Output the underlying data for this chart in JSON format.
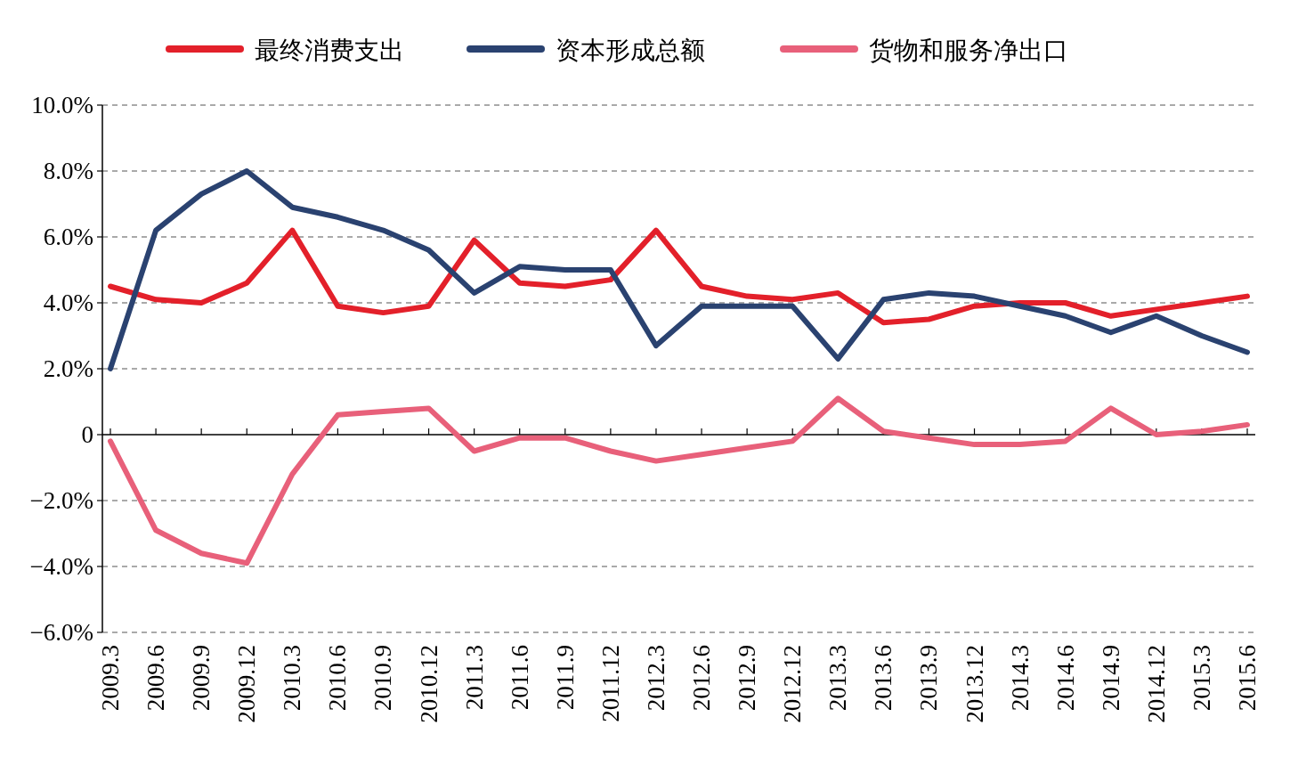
{
  "chart_data": {
    "type": "line",
    "categories": [
      "2009.3",
      "2009.6",
      "2009.9",
      "2009.12",
      "2010.3",
      "2010.6",
      "2010.9",
      "2010.12",
      "2011.3",
      "2011.6",
      "2011.9",
      "2011.12",
      "2012.3",
      "2012.6",
      "2012.9",
      "2012.12",
      "2013.3",
      "2013.6",
      "2013.9",
      "2013.12",
      "2014.3",
      "2014.6",
      "2014.9",
      "2014.12",
      "2015.3",
      "2015.6"
    ],
    "series": [
      {
        "name": "最终消费支出",
        "color": "#e3202a",
        "values": [
          4.5,
          4.1,
          4.0,
          4.6,
          6.2,
          3.9,
          3.7,
          3.9,
          5.9,
          4.6,
          4.5,
          4.7,
          6.2,
          4.5,
          4.2,
          4.1,
          4.3,
          3.4,
          3.5,
          3.9,
          4.0,
          4.0,
          3.6,
          3.8,
          4.0,
          4.2
        ]
      },
      {
        "name": "资本形成总额",
        "color": "#2a4270",
        "values": [
          2.0,
          6.2,
          7.3,
          8.0,
          6.9,
          6.6,
          6.2,
          5.6,
          4.3,
          5.1,
          5.0,
          5.0,
          2.7,
          3.9,
          3.9,
          3.9,
          2.3,
          4.1,
          4.3,
          4.2,
          3.9,
          3.6,
          3.1,
          3.6,
          3.0,
          2.5
        ]
      },
      {
        "name": "货物和服务净出口",
        "color": "#e8607a",
        "values": [
          -0.2,
          -2.9,
          -3.6,
          -3.9,
          -1.2,
          0.6,
          0.7,
          0.8,
          -0.5,
          -0.1,
          -0.1,
          -0.5,
          -0.8,
          -0.6,
          -0.4,
          -0.2,
          1.1,
          0.1,
          -0.1,
          -0.3,
          -0.3,
          -0.2,
          0.8,
          0.0,
          0.1,
          0.3
        ]
      }
    ],
    "ylim": [
      -6,
      10
    ],
    "yticks": [
      {
        "value": 10,
        "label": "10.0%"
      },
      {
        "value": 8,
        "label": "8.0%"
      },
      {
        "value": 6,
        "label": "6.0%"
      },
      {
        "value": 4,
        "label": "4.0%"
      },
      {
        "value": 2,
        "label": "2.0%"
      },
      {
        "value": 0,
        "label": "0"
      },
      {
        "value": -2,
        "label": "−2.0%"
      },
      {
        "value": -4,
        "label": "−4.0%"
      },
      {
        "value": -6,
        "label": "−6.0%"
      }
    ],
    "grid": "y",
    "legend": "top"
  }
}
